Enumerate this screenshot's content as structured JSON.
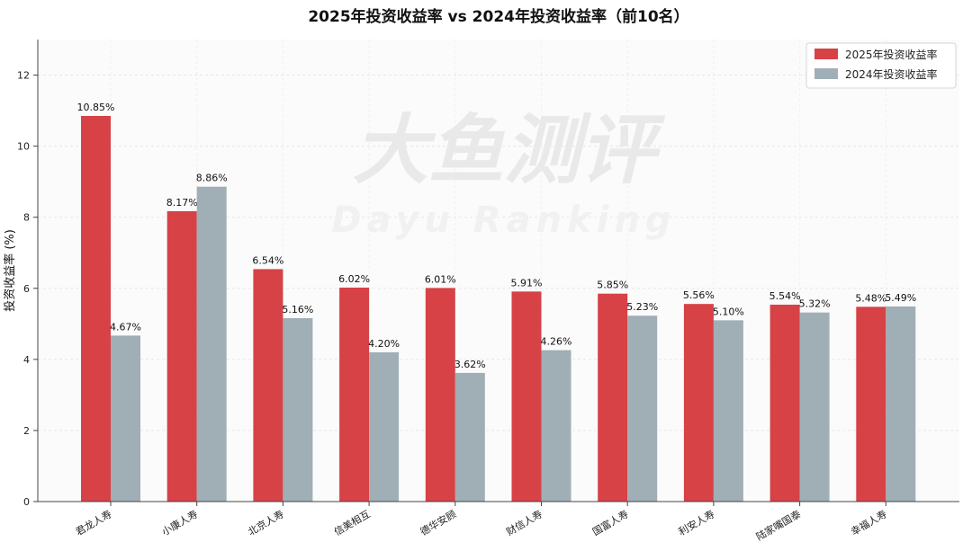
{
  "chart_data": {
    "type": "bar",
    "title": "2025年投资收益率 vs 2024年投资收益率（前10名）",
    "xlabel": "",
    "ylabel": "投资收益率 (%)",
    "ylim": [
      0,
      13
    ],
    "yticks": [
      0,
      2,
      4,
      6,
      8,
      10,
      12
    ],
    "grid": true,
    "legend_position": "top-right",
    "categories": [
      "君龙人寿",
      "小康人寿",
      "北京人寿",
      "信美相互",
      "德华安顾",
      "财信人寿",
      "国富人寿",
      "利安人寿",
      "陆家嘴国泰",
      "幸福人寿"
    ],
    "series": [
      {
        "name": "2025年投资收益率",
        "color": "#d64246",
        "values": [
          10.85,
          8.17,
          6.54,
          6.02,
          6.01,
          5.91,
          5.85,
          5.56,
          5.54,
          5.48
        ],
        "labels": [
          "10.85%",
          "8.17%",
          "6.54%",
          "6.02%",
          "6.01%",
          "5.91%",
          "5.85%",
          "5.56%",
          "5.54%",
          "5.48%"
        ]
      },
      {
        "name": "2024年投资收益率",
        "color": "#a0aeb6",
        "values": [
          4.67,
          8.86,
          5.16,
          4.2,
          3.62,
          4.26,
          5.23,
          5.1,
          5.32,
          5.49
        ],
        "labels": [
          "4.67%",
          "8.86%",
          "5.16%",
          "4.20%",
          "3.62%",
          "4.26%",
          "5.23%",
          "5.10%",
          "5.32%",
          "5.49%"
        ]
      }
    ],
    "watermark": [
      "大鱼测评",
      "Dayu Ranking"
    ]
  }
}
